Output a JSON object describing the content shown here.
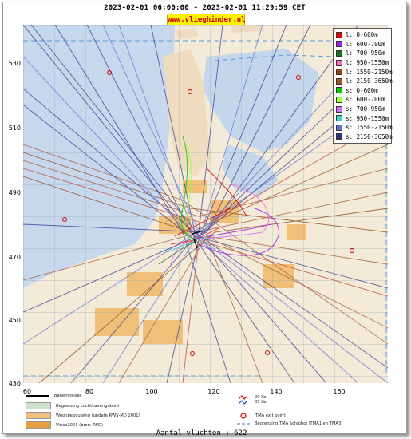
{
  "header": {
    "time_range": "2023-02-01 06:00:00 - 2023-02-01 11:29:59 CET",
    "site": "www.vlieghinder.nl"
  },
  "axes": {
    "y_ticks": [
      "530",
      "510",
      "490",
      "470",
      "450",
      "430"
    ],
    "x_ticks": [
      "60",
      "80",
      "100",
      "120",
      "140",
      "160"
    ]
  },
  "legend": {
    "items": [
      {
        "label": "l: 0-600m",
        "color": "#e00000"
      },
      {
        "label": "l: 600-700m",
        "color": "#a020f0"
      },
      {
        "label": "l: 700-950m",
        "color": "#1f6f1f"
      },
      {
        "label": "l: 950-1550m",
        "color": "#ff66cc"
      },
      {
        "label": "l: 1550-2150m",
        "color": "#8b4513"
      },
      {
        "label": "l: 2150-3650m",
        "color": "#a0522d"
      },
      {
        "label": "s: 0-600m",
        "color": "#00cc00"
      },
      {
        "label": "s: 600-700m",
        "color": "#9aff3a"
      },
      {
        "label": "s: 700-950m",
        "color": "#d070ff"
      },
      {
        "label": "s: 950-1550m",
        "color": "#3fd4d4"
      },
      {
        "label": "s: 1550-2150m",
        "color": "#5b6fd6"
      },
      {
        "label": "s: 2150-3650m",
        "color": "#303090"
      }
    ]
  },
  "bottom_legend": {
    "left": [
      {
        "label": "Banenstelsel",
        "color": "#000000"
      },
      {
        "label": "Begrenzing Luchthavengebied",
        "color": "#cfe0cf"
      },
      {
        "label": "Woonbebouwing (update RWS-MD 2001)",
        "color": "#f0c080"
      },
      {
        "label": "Vinex2001 (bron: RPD)",
        "color": "#e6a040"
      }
    ],
    "right": [
      {
        "label": "20 Ke",
        "symbol": "contour"
      },
      {
        "label": "35 Ke",
        "symbol": "contour"
      },
      {
        "label": "TMA exit point",
        "symbol": "circle"
      },
      {
        "label": "Begrenzing TMA Schiphol (TMA1 en TMA3)",
        "symbol": "dash"
      }
    ]
  },
  "footer": {
    "count_text": "Aantal vluchten : 622"
  }
}
